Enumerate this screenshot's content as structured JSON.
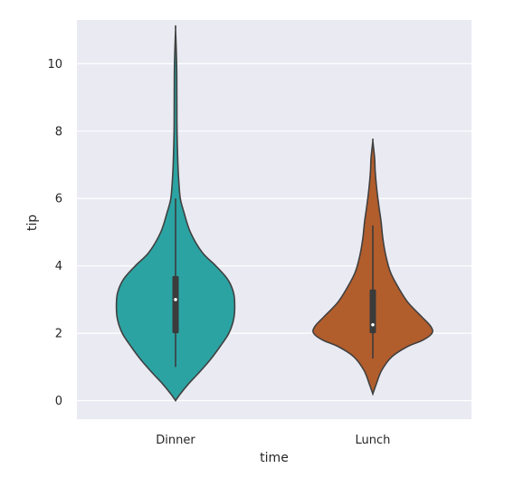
{
  "chart_data": {
    "type": "violin",
    "xlabel": "time",
    "ylabel": "tip",
    "ylim": [
      -0.55,
      11.3
    ],
    "yticks": [
      0,
      2,
      4,
      6,
      8,
      10
    ],
    "grid": true,
    "background_color": "#eaeaf2",
    "categories": [
      "Dinner",
      "Lunch"
    ],
    "violins": [
      {
        "category": "Dinner",
        "color": "#2ca3a3",
        "min": 0.0,
        "max": 11.0,
        "q1": 2.0,
        "median": 3.0,
        "q3": 3.7,
        "whisker_low": 1.0,
        "whisker_high": 6.0,
        "density_profile": [
          [
            0.0,
            0.0
          ],
          [
            0.2,
            0.08
          ],
          [
            0.5,
            0.22
          ],
          [
            0.8,
            0.38
          ],
          [
            1.2,
            0.58
          ],
          [
            1.6,
            0.75
          ],
          [
            2.0,
            0.9
          ],
          [
            2.4,
            0.98
          ],
          [
            2.8,
            1.0
          ],
          [
            3.2,
            0.98
          ],
          [
            3.6,
            0.88
          ],
          [
            4.0,
            0.68
          ],
          [
            4.4,
            0.45
          ],
          [
            5.0,
            0.25
          ],
          [
            5.6,
            0.14
          ],
          [
            6.0,
            0.08
          ],
          [
            6.5,
            0.055
          ],
          [
            7.0,
            0.04
          ],
          [
            8.0,
            0.025
          ],
          [
            9.0,
            0.022
          ],
          [
            10.0,
            0.018
          ],
          [
            11.0,
            0.0
          ]
        ]
      },
      {
        "category": "Lunch",
        "color": "#b25d2c",
        "min": 0.2,
        "max": 7.7,
        "q1": 2.0,
        "median": 2.25,
        "q3": 3.3,
        "whisker_low": 1.25,
        "whisker_high": 5.2,
        "density_profile": [
          [
            0.2,
            0.0
          ],
          [
            0.5,
            0.06
          ],
          [
            0.9,
            0.15
          ],
          [
            1.3,
            0.32
          ],
          [
            1.6,
            0.58
          ],
          [
            1.8,
            0.85
          ],
          [
            2.0,
            1.0
          ],
          [
            2.2,
            0.98
          ],
          [
            2.5,
            0.82
          ],
          [
            2.9,
            0.6
          ],
          [
            3.3,
            0.45
          ],
          [
            3.8,
            0.3
          ],
          [
            4.3,
            0.22
          ],
          [
            4.8,
            0.17
          ],
          [
            5.3,
            0.14
          ],
          [
            5.8,
            0.1
          ],
          [
            6.3,
            0.065
          ],
          [
            6.8,
            0.04
          ],
          [
            7.2,
            0.03
          ],
          [
            7.7,
            0.0
          ]
        ]
      }
    ]
  }
}
